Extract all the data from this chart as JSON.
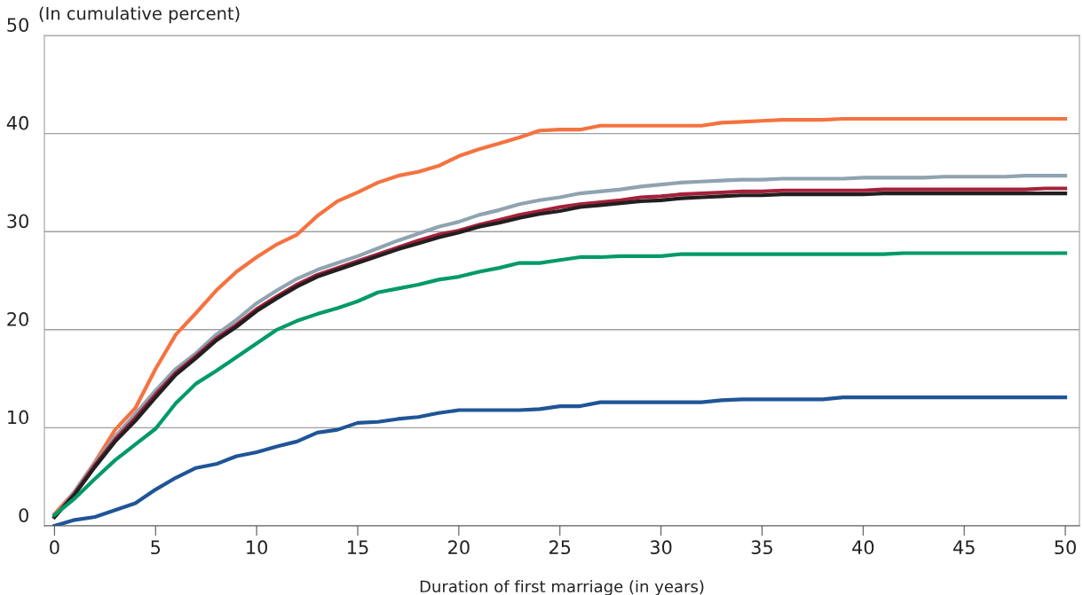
{
  "chart_data": {
    "type": "line",
    "ylabel": "(In cumulative percent)",
    "xlabel": "Duration of first marriage (in years)",
    "x": [
      0,
      1,
      2,
      3,
      4,
      5,
      6,
      7,
      8,
      9,
      10,
      11,
      12,
      13,
      14,
      15,
      16,
      17,
      18,
      19,
      20,
      21,
      22,
      23,
      24,
      25,
      26,
      27,
      28,
      29,
      30,
      31,
      32,
      33,
      34,
      35,
      36,
      37,
      38,
      39,
      40,
      41,
      42,
      43,
      44,
      45,
      46,
      47,
      48,
      49,
      50
    ],
    "xlim": [
      -0.5,
      50.7
    ],
    "xticks": [
      0,
      5,
      10,
      15,
      20,
      25,
      30,
      35,
      40,
      45,
      50
    ],
    "ylim": [
      0,
      50
    ],
    "yticks": [
      0,
      10,
      20,
      30,
      40,
      50
    ],
    "grid": "y",
    "legend": false,
    "marker": "none",
    "line_style": "solid",
    "series": [
      {
        "color": "#f47340",
        "values": [
          1.2,
          3.5,
          6.5,
          9.8,
          12,
          16,
          19.5,
          21.7,
          24,
          25.9,
          27.4,
          28.7,
          29.7,
          31.6,
          33.1,
          34,
          35,
          35.7,
          36.1,
          36.7,
          37.7,
          38.4,
          39,
          39.6,
          40.3,
          40.4,
          40.4,
          40.8,
          40.8,
          40.8,
          40.8,
          40.8,
          40.8,
          41.1,
          41.2,
          41.3,
          41.4,
          41.4,
          41.4,
          41.5,
          41.5,
          41.5,
          41.5,
          41.5,
          41.5,
          41.5,
          41.5,
          41.5,
          41.5,
          41.5,
          41.5
        ]
      },
      {
        "color": "#8fa3b0",
        "values": [
          0.9,
          3.5,
          6.4,
          9.1,
          11.4,
          13.8,
          16,
          17.6,
          19.5,
          21,
          22.7,
          24,
          25.2,
          26.1,
          26.8,
          27.5,
          28.3,
          29.1,
          29.8,
          30.5,
          31,
          31.7,
          32.2,
          32.8,
          33.2,
          33.5,
          33.9,
          34.1,
          34.3,
          34.6,
          34.8,
          35,
          35.1,
          35.2,
          35.3,
          35.3,
          35.4,
          35.4,
          35.4,
          35.4,
          35.5,
          35.5,
          35.5,
          35.5,
          35.6,
          35.6,
          35.6,
          35.6,
          35.7,
          35.7,
          35.7
        ]
      },
      {
        "color": "#a6203a",
        "values": [
          0.9,
          3.3,
          6.2,
          8.8,
          11,
          13.4,
          15.6,
          17.3,
          19.1,
          20.5,
          22.1,
          23.4,
          24.6,
          25.6,
          26.3,
          27,
          27.7,
          28.4,
          29.1,
          29.7,
          30.1,
          30.7,
          31.2,
          31.7,
          32.1,
          32.5,
          32.8,
          33,
          33.2,
          33.5,
          33.6,
          33.8,
          33.9,
          34,
          34.1,
          34.1,
          34.2,
          34.2,
          34.2,
          34.2,
          34.2,
          34.3,
          34.3,
          34.3,
          34.3,
          34.3,
          34.3,
          34.3,
          34.3,
          34.4,
          34.4
        ]
      },
      {
        "color": "#231f20",
        "values": [
          0.9,
          3.2,
          6,
          8.6,
          10.7,
          13.1,
          15.4,
          17.1,
          18.9,
          20.3,
          21.9,
          23.2,
          24.4,
          25.4,
          26.1,
          26.8,
          27.5,
          28.2,
          28.8,
          29.4,
          29.9,
          30.5,
          30.9,
          31.4,
          31.8,
          32.1,
          32.5,
          32.7,
          32.9,
          33.1,
          33.2,
          33.4,
          33.5,
          33.6,
          33.7,
          33.7,
          33.8,
          33.8,
          33.8,
          33.8,
          33.8,
          33.9,
          33.9,
          33.9,
          33.9,
          33.9,
          33.9,
          33.9,
          33.9,
          33.9,
          33.9
        ]
      },
      {
        "color": "#009a66",
        "values": [
          1.1,
          2.8,
          4.8,
          6.7,
          8.3,
          9.9,
          12.5,
          14.5,
          15.8,
          17.2,
          18.6,
          20,
          20.9,
          21.6,
          22.2,
          22.9,
          23.8,
          24.2,
          24.6,
          25.1,
          25.4,
          25.9,
          26.3,
          26.8,
          26.8,
          27.1,
          27.4,
          27.4,
          27.5,
          27.5,
          27.5,
          27.7,
          27.7,
          27.7,
          27.7,
          27.7,
          27.7,
          27.7,
          27.7,
          27.7,
          27.7,
          27.7,
          27.8,
          27.8,
          27.8,
          27.8,
          27.8,
          27.8,
          27.8,
          27.8,
          27.8
        ]
      },
      {
        "color": "#1f5597",
        "values": [
          0,
          0.6,
          0.9,
          1.6,
          2.3,
          3.7,
          4.9,
          5.9,
          6.3,
          7.1,
          7.5,
          8.1,
          8.6,
          9.5,
          9.8,
          10.5,
          10.6,
          10.9,
          11.1,
          11.5,
          11.8,
          11.8,
          11.8,
          11.8,
          11.9,
          12.2,
          12.2,
          12.6,
          12.6,
          12.6,
          12.6,
          12.6,
          12.6,
          12.8,
          12.9,
          12.9,
          12.9,
          12.9,
          12.9,
          13.1,
          13.1,
          13.1,
          13.1,
          13.1,
          13.1,
          13.1,
          13.1,
          13.1,
          13.1,
          13.1,
          13.1
        ]
      }
    ]
  }
}
